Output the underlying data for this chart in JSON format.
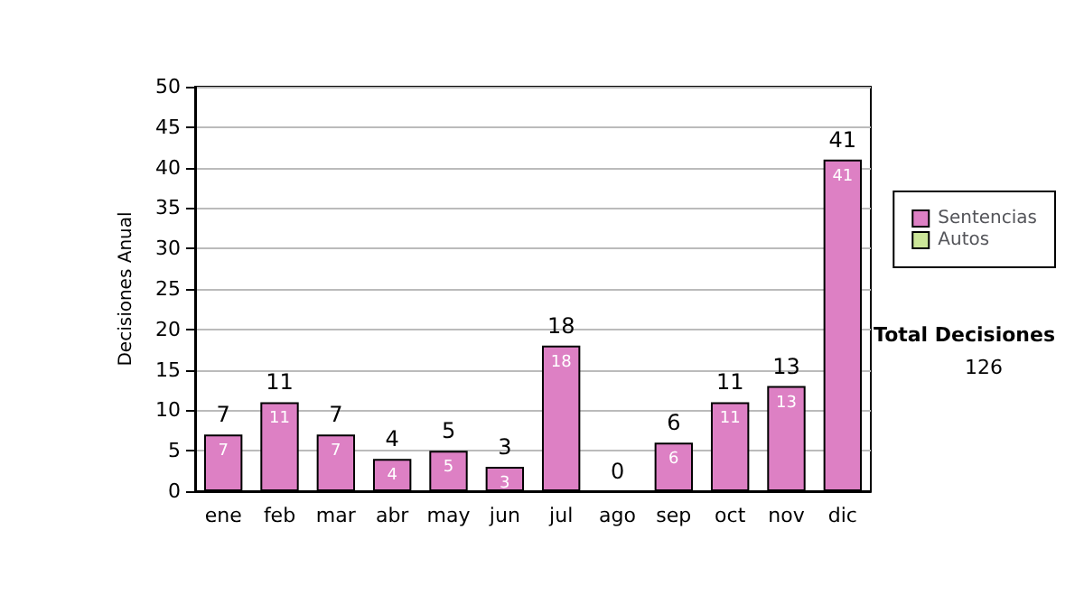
{
  "chart_data": {
    "type": "bar",
    "stacked": true,
    "ylabel": "Decisiones Anual",
    "categories": [
      "ene",
      "feb",
      "mar",
      "abr",
      "may",
      "jun",
      "jul",
      "ago",
      "sep",
      "oct",
      "nov",
      "dic"
    ],
    "series": [
      {
        "name": "Sentencias",
        "color": "#dd80c4",
        "values": [
          7,
          11,
          7,
          4,
          5,
          3,
          18,
          0,
          6,
          11,
          13,
          41
        ],
        "value_labels": [
          "7",
          "11",
          "7",
          "4",
          "5",
          "3",
          "18",
          null,
          "6",
          "11",
          "13",
          "41"
        ]
      },
      {
        "name": "Autos",
        "color": "#cce699",
        "values": [
          0,
          0,
          0,
          0,
          0,
          0,
          0,
          0,
          0,
          0,
          0,
          0
        ]
      }
    ],
    "totals": [
      "7",
      "11",
      "7",
      "4",
      "5",
      "3",
      "18",
      "0",
      "6",
      "11",
      "13",
      "41"
    ],
    "ylim": [
      0,
      50
    ],
    "yticks": [
      0,
      5,
      10,
      15,
      20,
      25,
      30,
      35,
      40,
      45,
      50
    ],
    "grid": "y",
    "legend": "right",
    "annotations": [
      "Total Decisiones",
      "126"
    ]
  }
}
